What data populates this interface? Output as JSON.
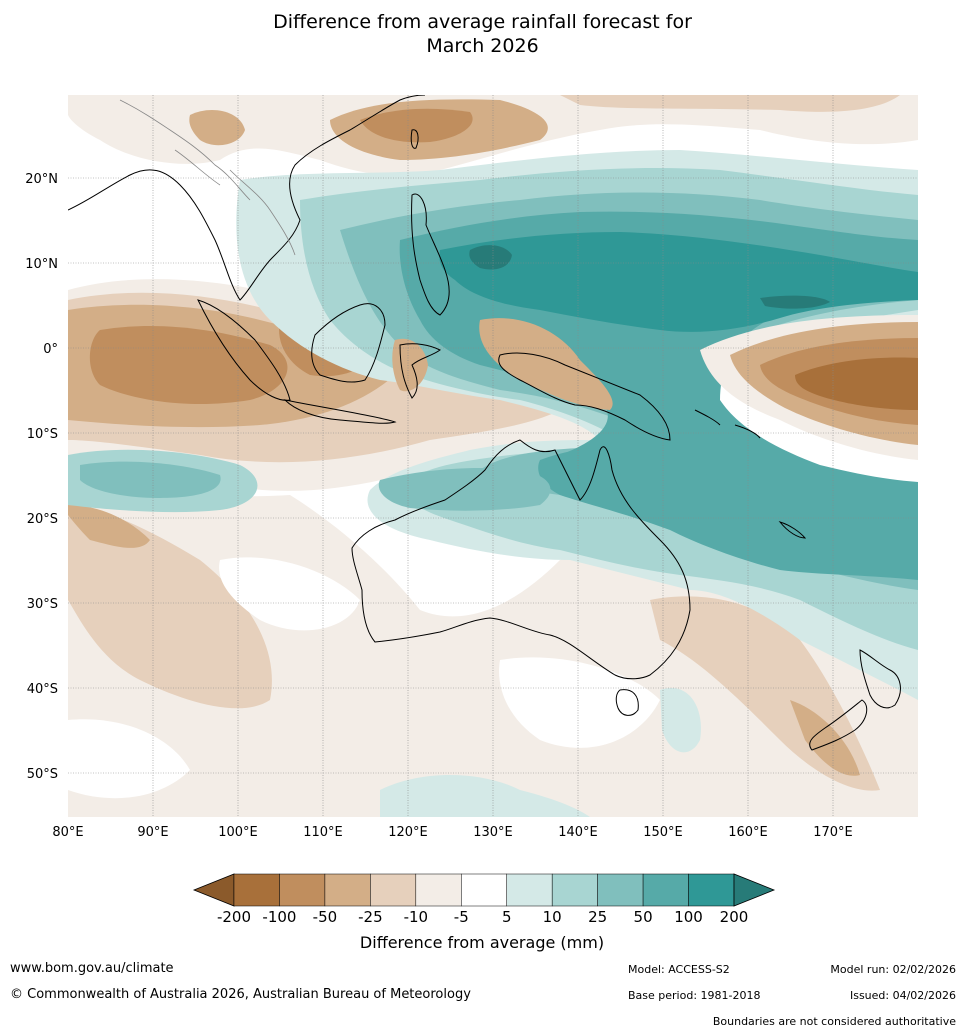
{
  "title": {
    "line1": "Difference from average rainfall forecast for",
    "line2": "March 2026"
  },
  "map": {
    "lon_range": [
      80,
      180
    ],
    "lat_range": [
      -55,
      30
    ],
    "lat_labels": [
      "20°N",
      "10°N",
      "0°",
      "10°S",
      "20°S",
      "30°S",
      "40°S",
      "50°S"
    ],
    "lon_labels": [
      "80°E",
      "90°E",
      "100°E",
      "110°E",
      "120°E",
      "130°E",
      "140°E",
      "150°E",
      "160°E",
      "170°E"
    ]
  },
  "legend": {
    "title": "Difference from average (mm)",
    "ticks": [
      "-200",
      "-100",
      "-50",
      "-25",
      "-10",
      "-5",
      "5",
      "10",
      "25",
      "50",
      "100",
      "200"
    ],
    "colors": [
      "#8b5a2b",
      "#a8703a",
      "#c08e5e",
      "#d3ae87",
      "#e6d0bc",
      "#f3ede7",
      "#ffffff",
      "#d4e9e7",
      "#a8d5d2",
      "#80bfbd",
      "#56aaa8",
      "#2f9896",
      "#277b78"
    ]
  },
  "footer": {
    "website": "www.bom.gov.au/climate",
    "copyright": "© Commonwealth of Australia 2026, Australian Bureau of Meteorology",
    "model": "Model: ACCESS-S2",
    "base_period": "Base period: 1981-2018",
    "model_run": "Model run: 02/02/2026",
    "issued": "Issued: 04/02/2026",
    "disclaimer": "Boundaries are not considered authoritative"
  }
}
